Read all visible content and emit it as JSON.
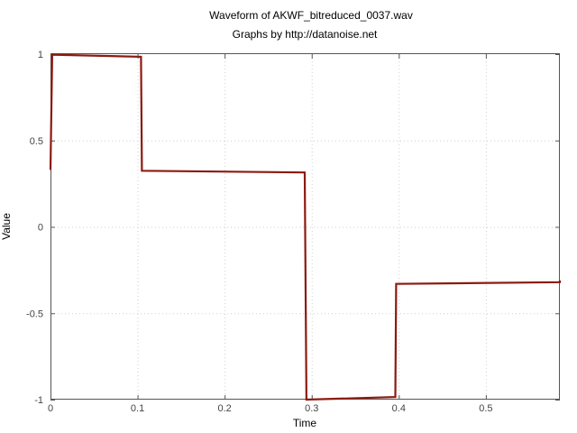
{
  "chart_data": {
    "type": "line",
    "title": "Waveform of AKWF_bitreduced_0037.wav",
    "subtitle": "Graphs by http://datanoise.net",
    "xlabel": "Time",
    "ylabel": "Value",
    "xlim": [
      0,
      0.585
    ],
    "ylim": [
      -1,
      1
    ],
    "xticks": [
      0,
      0.1,
      0.2,
      0.3,
      0.4,
      0.5
    ],
    "xtick_labels": [
      "0",
      "0.1",
      "0.2",
      "0.3",
      "0.4",
      "0.5"
    ],
    "yticks": [
      -1,
      -0.5,
      0,
      0.5,
      1
    ],
    "ytick_labels": [
      "-1",
      "-0.5",
      "0",
      "0.5",
      "1"
    ],
    "grid": true,
    "series": [
      {
        "color": "#8b1a10",
        "x": [
          0,
          0.002,
          0.104,
          0.105,
          0.292,
          0.294,
          0.396,
          0.397,
          0.585,
          0.585
        ],
        "y": [
          0.33,
          0.997,
          0.985,
          0.325,
          0.315,
          -1.0,
          -0.985,
          -0.33,
          -0.32,
          -0.31
        ]
      }
    ]
  }
}
